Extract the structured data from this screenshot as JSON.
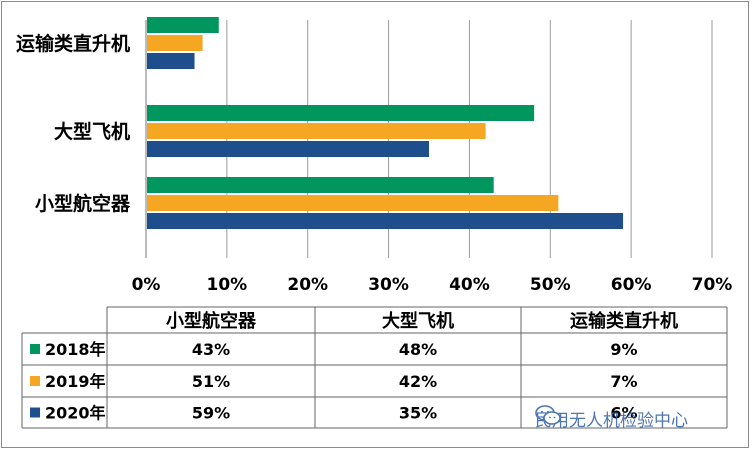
{
  "chart_data": {
    "type": "bar",
    "orientation": "horizontal",
    "categories": [
      "小型航空器",
      "大型飞机",
      "运输类直升机"
    ],
    "series": [
      {
        "name": "2018年",
        "values": [
          43,
          48,
          9
        ],
        "color": "#00965e"
      },
      {
        "name": "2019年",
        "values": [
          51,
          42,
          7
        ],
        "color": "#f5a623"
      },
      {
        "name": "2020年",
        "values": [
          59,
          35,
          6
        ],
        "color": "#1f4e8c"
      }
    ],
    "xticks": [
      "0%",
      "10%",
      "20%",
      "30%",
      "40%",
      "50%",
      "60%",
      "70%"
    ],
    "xlim": [
      0,
      70
    ],
    "grid": "vertical",
    "legend": "data-table",
    "table": {
      "headers": [
        "小型航空器",
        "大型飞机",
        "运输类直升机"
      ],
      "rows": [
        {
          "label": "2018年",
          "cells": [
            "43%",
            "48%",
            "9%"
          ]
        },
        {
          "label": "2019年",
          "cells": [
            "51%",
            "42%",
            "7%"
          ]
        },
        {
          "label": "2020年",
          "cells": [
            "59%",
            "35%",
            "6%"
          ]
        }
      ]
    }
  },
  "watermark": {
    "text": "民用无人机检验中心",
    "icon": "wechat-icon"
  }
}
